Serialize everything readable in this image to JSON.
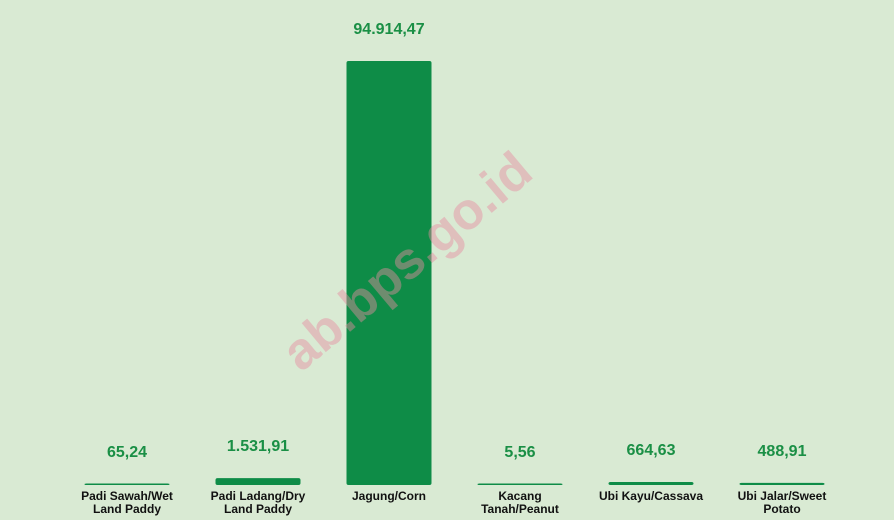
{
  "chart_data": {
    "type": "bar",
    "categories": [
      "Padi Sawah/Wet Land Paddy",
      "Padi Ladang/Dry Land Paddy",
      "Jagung/Corn",
      "Kacang Tanah/Peanut",
      "Ubi Kayu/Cassava",
      "Ubi Jalar/Sweet Potato"
    ],
    "values": [
      65.24,
      1531.91,
      94914.47,
      5.56,
      664.63,
      488.91
    ],
    "value_labels": [
      "65,24",
      "1.531,91",
      "94.914,47",
      "5,56",
      "664,63",
      "488,91"
    ],
    "color": "#0e8c47"
  },
  "watermark": "ab.bps.go.id"
}
